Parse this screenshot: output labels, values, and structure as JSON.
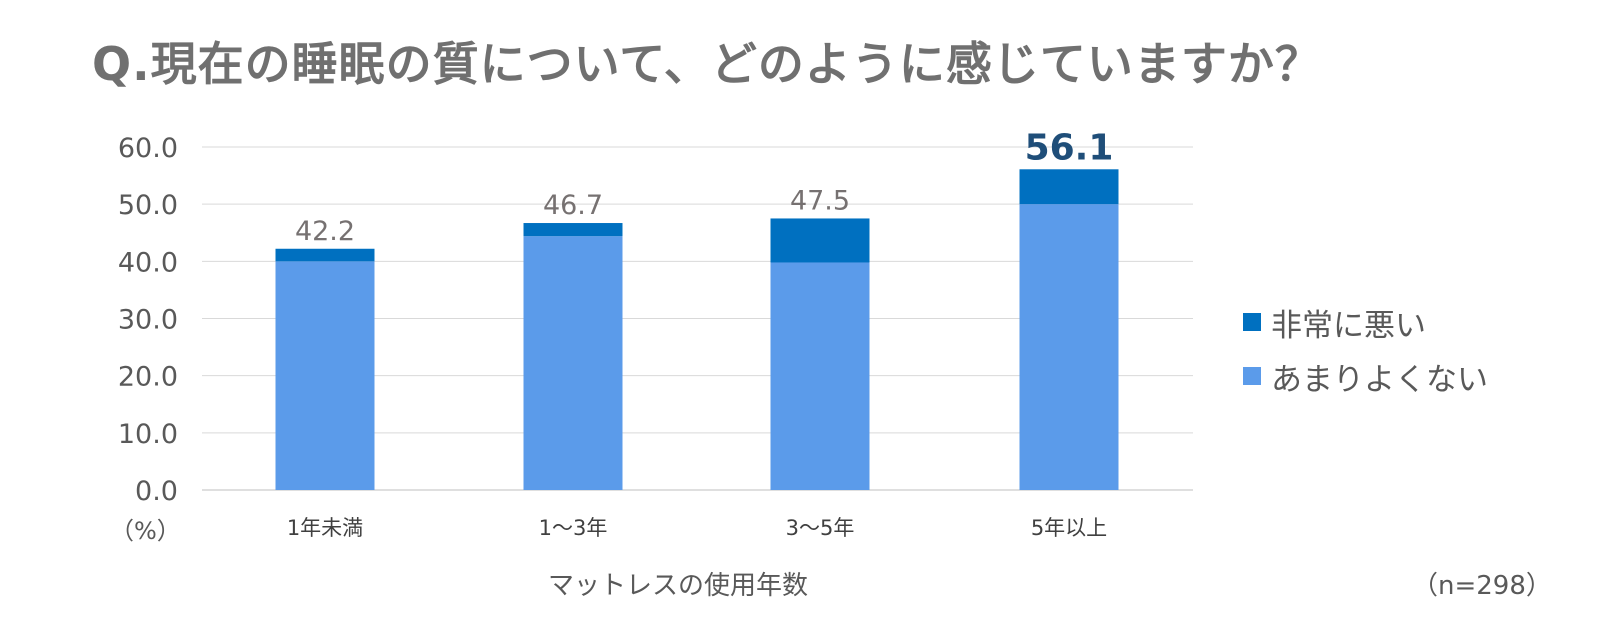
{
  "chart_data": {
    "type": "bar",
    "stacked": true,
    "title": "Q.現在の睡眠の質について、どのように感じていますか？",
    "categories": [
      "1年未満",
      "1～3年",
      "3～5年",
      "5年以上"
    ],
    "series": [
      {
        "name": "あまりよくない",
        "values": [
          40.0,
          44.4,
          39.8,
          50.0
        ],
        "color": "#5b9bea"
      },
      {
        "name": "非常に悪い",
        "values": [
          2.2,
          2.3,
          7.7,
          6.1
        ],
        "color": "#0070c0"
      }
    ],
    "totals": [
      42.2,
      46.7,
      47.5,
      56.1
    ],
    "total_labels": [
      "42.2",
      "46.7",
      "47.5",
      "56.1"
    ],
    "highlight_index": 3,
    "highlight_color": "#1f4e79",
    "total_label_color": "#767171",
    "ylim": [
      0,
      60
    ],
    "yticks": [
      0,
      10,
      20,
      30,
      40,
      50,
      60
    ],
    "ytick_labels": [
      "0.0",
      "10.0",
      "20.0",
      "30.0",
      "40.0",
      "50.0",
      "60.0"
    ],
    "ylabel": "（%）",
    "xlabel": "マットレスの使用年数",
    "grid": true,
    "legend_position": "right",
    "legend_order": [
      "非常に悪い",
      "あまりよくない"
    ],
    "note": "（n=298）"
  }
}
